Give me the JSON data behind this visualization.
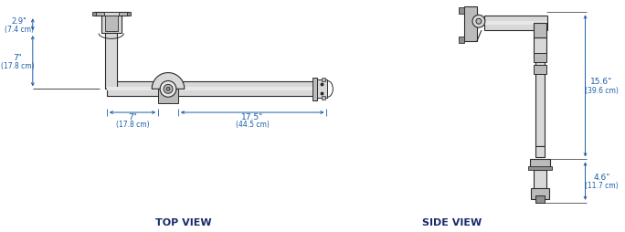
{
  "bg_color": "#ffffff",
  "line_color": "#2a2a2a",
  "dim_color": "#1a5fa8",
  "title_color": "#1a2a6b",
  "fill_light": "#d8d8d8",
  "fill_mid": "#bbbbbb",
  "fill_dark": "#909090",
  "top_view_label": "TOP VIEW",
  "side_view_label": "SIDE VIEW",
  "dim_29_l1": "2.9\"",
  "dim_29_l2": "(7.4 cm)",
  "dim_7v_l1": "7\"",
  "dim_7v_l2": "(17.8 cm)",
  "dim_7h_l1": "7\"",
  "dim_7h_l2": "(17.8 cm)",
  "dim_175_l1": "17.5\"",
  "dim_175_l2": "(44.5 cm)",
  "dim_156_l1": "15.6\"",
  "dim_156_l2": "(39.6 cm)",
  "dim_46_l1": "4.6\"",
  "dim_46_l2": "(11.7 cm)"
}
